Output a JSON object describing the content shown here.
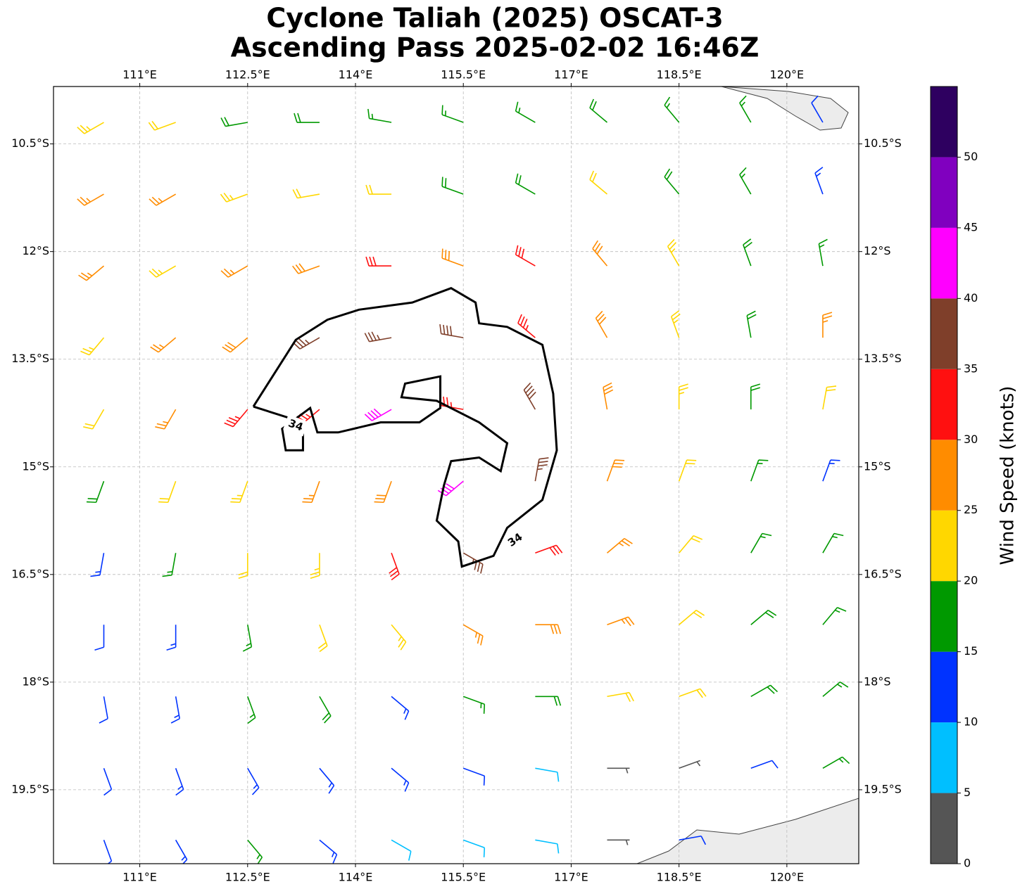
{
  "chart_data": {
    "type": "wind-barb",
    "title": [
      "Cyclone Taliah (2025) OSCAT-3",
      "Ascending Pass 2025-02-02 16:46Z"
    ],
    "xlim": [
      109.8,
      121.0
    ],
    "ylim": [
      -20.53,
      -9.7
    ],
    "xticks": [
      {
        "value": 111,
        "label": "111°E"
      },
      {
        "value": 112.5,
        "label": "112.5°E"
      },
      {
        "value": 114,
        "label": "114°E"
      },
      {
        "value": 115.5,
        "label": "115.5°E"
      },
      {
        "value": 117,
        "label": "117°E"
      },
      {
        "value": 118.5,
        "label": "118.5°E"
      },
      {
        "value": 120,
        "label": "120°E"
      }
    ],
    "yticks": [
      {
        "value": -10.5,
        "label": "10.5°S"
      },
      {
        "value": -12,
        "label": "12°S"
      },
      {
        "value": -13.5,
        "label": "13.5°S"
      },
      {
        "value": -15,
        "label": "15°S"
      },
      {
        "value": -16.5,
        "label": "16.5°S"
      },
      {
        "value": -18,
        "label": "18°S"
      },
      {
        "value": -19.5,
        "label": "19.5°S"
      }
    ],
    "grid": true,
    "lons": [
      110.5,
      111.5,
      112.5,
      113.5,
      114.5,
      115.5,
      116.5,
      117.5,
      118.5,
      119.5,
      120.5
    ],
    "lats": [
      -10.2,
      -11.2,
      -12.2,
      -13.2,
      -14.2,
      -15.2,
      -16.2,
      -17.2,
      -18.2,
      -19.2,
      -20.2
    ],
    "speed": [
      [
        23,
        22,
        18,
        18,
        17,
        17,
        17,
        18,
        17,
        16,
        12
      ],
      [
        27,
        26,
        24,
        22,
        22,
        19,
        19,
        21,
        19,
        17,
        13
      ],
      [
        26,
        24,
        27,
        28,
        31,
        29,
        31,
        28,
        23,
        18,
        17
      ],
      [
        23,
        26,
        29,
        37,
        37,
        38,
        33,
        28,
        23,
        18,
        26
      ],
      [
        22,
        26,
        33,
        34,
        40,
        33,
        38,
        28,
        24,
        19,
        21
      ],
      [
        19,
        22,
        24,
        27,
        28,
        41,
        37,
        29,
        22,
        17,
        14
      ],
      [
        13,
        17,
        21,
        24,
        31,
        36,
        32,
        27,
        21,
        17,
        16
      ],
      [
        12,
        14,
        17,
        22,
        23,
        27,
        28,
        26,
        22,
        18,
        17
      ],
      [
        11,
        13,
        16,
        18,
        14,
        17,
        18,
        21,
        21,
        19,
        17
      ],
      [
        12,
        13,
        14,
        13,
        13,
        12,
        8,
        4,
        3,
        12,
        16
      ],
      [
        12,
        13,
        16,
        13,
        9,
        9,
        8,
        4,
        11,
        null,
        null
      ]
    ],
    "direction": [
      [
        240,
        250,
        260,
        270,
        280,
        290,
        300,
        310,
        320,
        330,
        330
      ],
      [
        240,
        240,
        250,
        260,
        270,
        290,
        300,
        310,
        320,
        330,
        340
      ],
      [
        230,
        240,
        240,
        250,
        270,
        290,
        300,
        320,
        330,
        340,
        350
      ],
      [
        220,
        230,
        230,
        240,
        260,
        280,
        310,
        330,
        340,
        350,
        0
      ],
      [
        210,
        210,
        220,
        230,
        240,
        280,
        330,
        350,
        0,
        0,
        10
      ],
      [
        200,
        200,
        200,
        200,
        200,
        230,
        10,
        20,
        20,
        20,
        20
      ],
      [
        190,
        190,
        180,
        180,
        160,
        120,
        70,
        50,
        40,
        30,
        30
      ],
      [
        180,
        180,
        170,
        160,
        140,
        120,
        90,
        70,
        50,
        50,
        40
      ],
      [
        170,
        170,
        160,
        150,
        130,
        110,
        90,
        80,
        70,
        60,
        50
      ],
      [
        160,
        160,
        150,
        140,
        130,
        110,
        100,
        90,
        70,
        70,
        60
      ],
      [
        160,
        150,
        140,
        130,
        120,
        110,
        100,
        90,
        80,
        null,
        null
      ]
    ],
    "contour": {
      "level": 34,
      "lons": [
        112.58,
        113.17,
        113.61,
        114.05,
        114.79,
        115.33,
        115.67,
        115.72,
        116.11,
        116.6,
        116.75,
        116.8,
        116.6,
        116.11,
        115.92,
        115.48,
        115.43,
        115.13,
        115.23,
        115.33,
        115.72,
        116.02,
        116.11,
        115.72,
        115.13,
        114.64,
        114.69,
        115.18,
        115.18,
        114.89,
        114.35,
        113.76,
        113.47,
        113.37,
        112.98,
        113.03,
        113.27,
        113.27,
        112.58
      ],
      "lats": [
        -14.16,
        -13.23,
        -12.95,
        -12.81,
        -12.71,
        -12.51,
        -12.71,
        -13.0,
        -13.05,
        -13.3,
        -13.98,
        -14.77,
        -15.46,
        -15.85,
        -16.24,
        -16.39,
        -16.04,
        -15.75,
        -15.26,
        -14.92,
        -14.87,
        -15.06,
        -14.67,
        -14.38,
        -14.08,
        -14.03,
        -13.84,
        -13.74,
        -14.18,
        -14.38,
        -14.38,
        -14.52,
        -14.52,
        -14.18,
        -14.47,
        -14.77,
        -14.77,
        -14.38,
        -14.16
      ]
    },
    "colorbar": {
      "label": "Wind Speed (knots)",
      "bounds": [
        0,
        5,
        10,
        15,
        20,
        25,
        30,
        35,
        40,
        45,
        50,
        55
      ],
      "colors": [
        "#555555",
        "#00bfff",
        "#0033ff",
        "#009900",
        "#ffd700",
        "#ff8c00",
        "#ff1010",
        "#7f3f2a",
        "#ff00ff",
        "#8000bf",
        "#2e0060"
      ],
      "ticks": [
        0,
        5,
        10,
        15,
        20,
        25,
        30,
        35,
        40,
        45,
        50
      ]
    }
  }
}
